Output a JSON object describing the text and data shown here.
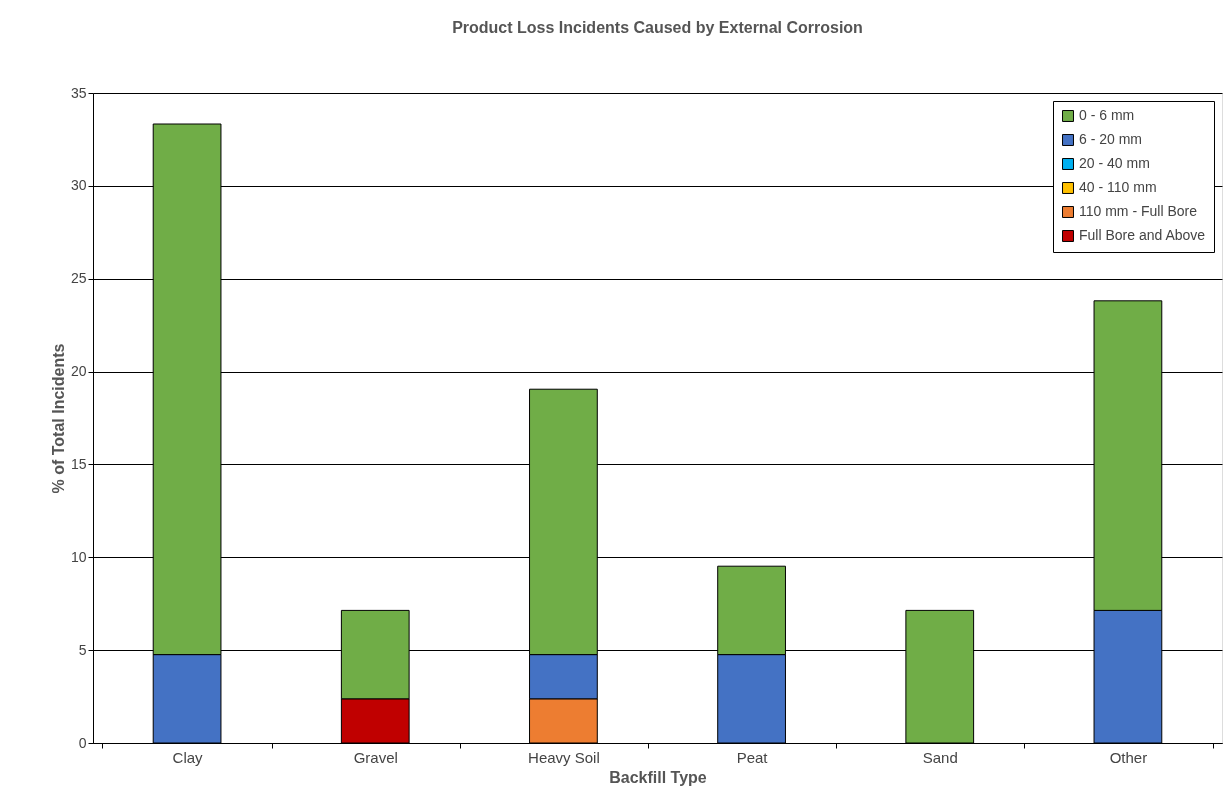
{
  "chart_data": {
    "type": "bar",
    "stacked": true,
    "title": "Product Loss Incidents Caused by External Corrosion",
    "xlabel": "Backfill Type",
    "ylabel": "% of Total Incidents",
    "categories": [
      "Clay",
      "Gravel",
      "Heavy Soil",
      "Peat",
      "Sand",
      "Other"
    ],
    "series": [
      {
        "name": "Full Bore and Above",
        "color": "#c00000",
        "values": [
          null,
          2.38,
          null,
          null,
          null,
          null
        ]
      },
      {
        "name": "110 mm - Full Bore",
        "color": "#ed7d31",
        "values": [
          null,
          null,
          2.38,
          null,
          null,
          null
        ]
      },
      {
        "name": "40 - 110 mm",
        "color": "#ffc000",
        "values": [
          null,
          null,
          null,
          null,
          null,
          null
        ]
      },
      {
        "name": "20 - 40 mm",
        "color": "#00b0f0",
        "values": [
          null,
          null,
          null,
          null,
          null,
          null
        ]
      },
      {
        "name": "6 - 20 mm",
        "color": "#4472c4",
        "values": [
          4.76,
          null,
          2.38,
          4.76,
          null,
          7.14
        ]
      },
      {
        "name": "0 - 6 mm",
        "color": "#70ad47",
        "values": [
          28.57,
          4.76,
          14.29,
          4.76,
          7.14,
          16.67
        ]
      }
    ],
    "ylim": [
      0,
      35
    ],
    "yticks": [
      0,
      5,
      10,
      15,
      20,
      25,
      30,
      35
    ],
    "grid": "y",
    "legend": "top right"
  }
}
